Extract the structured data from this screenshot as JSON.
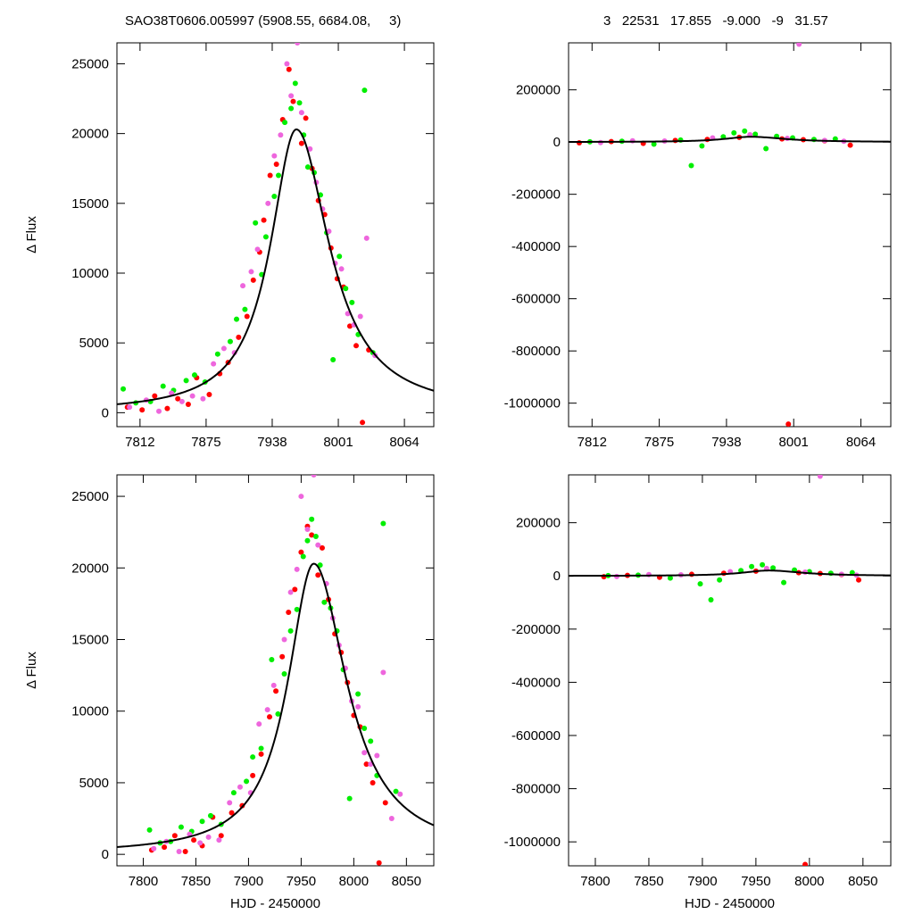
{
  "header": {
    "left": "SAO38T0606.005997 (5908.55, 6684.08,     3)",
    "right": "3   22531   17.855   -9.000   -9   31.57"
  },
  "colors": {
    "model": "#000000",
    "series_a": "#ff0000",
    "series_b": "#00ee00",
    "series_c": "#ee66dd"
  },
  "chart_data": [
    {
      "type": "scatter",
      "panel": "top-left",
      "xlabel": "",
      "ylabel": "Δ Flux",
      "xlim": [
        7790,
        8092
      ],
      "ylim": [
        -1000,
        26500
      ],
      "xticks": [
        7812,
        7875,
        7938,
        8001,
        8064
      ],
      "yticks": [
        0,
        5000,
        10000,
        15000,
        20000,
        25000
      ],
      "model": {
        "peak_x": 7961,
        "peak_y": 20300,
        "rise_scale": 30,
        "fall_scale": 38
      },
      "series": [
        {
          "color": "#ff0000",
          "x": [
            7800,
            7814,
            7826,
            7838,
            7848,
            7858,
            7866,
            7878,
            7888,
            7896,
            7906,
            7914,
            7920,
            7926,
            7930,
            7936,
            7942,
            7948,
            7954,
            7958,
            7966,
            7970,
            7976,
            7982,
            7988,
            7994,
            8000,
            8006,
            8012,
            8018,
            8024,
            8030
          ],
          "y": [
            400,
            200,
            1200,
            300,
            1000,
            600,
            2500,
            1300,
            2800,
            3600,
            5400,
            6900,
            9500,
            11500,
            13800,
            17000,
            17800,
            21000,
            24600,
            22300,
            19300,
            21100,
            17500,
            15200,
            14200,
            11800,
            9600,
            9000,
            6200,
            4800,
            -700,
            4500
          ]
        },
        {
          "color": "#00ee00",
          "x": [
            7796,
            7808,
            7822,
            7834,
            7844,
            7856,
            7864,
            7874,
            7886,
            7898,
            7904,
            7912,
            7922,
            7928,
            7932,
            7940,
            7944,
            7950,
            7956,
            7960,
            7964,
            7968,
            7972,
            7978,
            7984,
            7990,
            7996,
            8002,
            8008,
            8014,
            8020,
            8026,
            8034
          ],
          "y": [
            1700,
            700,
            800,
            1900,
            1600,
            2300,
            2700,
            2200,
            4200,
            5100,
            6700,
            7400,
            13600,
            9900,
            12600,
            15500,
            17000,
            20800,
            21800,
            23600,
            22200,
            19900,
            17600,
            17200,
            15600,
            12900,
            3800,
            11200,
            8900,
            7900,
            5600,
            23100,
            4300
          ]
        },
        {
          "color": "#ee66dd",
          "x": [
            7802,
            7818,
            7830,
            7842,
            7852,
            7862,
            7872,
            7882,
            7892,
            7902,
            7910,
            7918,
            7924,
            7934,
            7940,
            7946,
            7952,
            7956,
            7962,
            7966,
            7974,
            7980,
            7986,
            7992,
            7998,
            8004,
            8010,
            8016,
            8022,
            8028,
            8036
          ],
          "y": [
            400,
            900,
            100,
            1400,
            800,
            1200,
            1000,
            3500,
            4600,
            4300,
            9100,
            10100,
            11700,
            15000,
            18400,
            19900,
            25000,
            22700,
            26500,
            21500,
            18900,
            16500,
            14600,
            13000,
            10700,
            10300,
            7100,
            6300,
            6900,
            12500,
            4100
          ]
        }
      ]
    },
    {
      "type": "scatter",
      "panel": "top-right",
      "xlabel": "",
      "ylabel": "",
      "xlim": [
        7790,
        8092
      ],
      "ylim": [
        -1090000,
        380000
      ],
      "xticks": [
        7812,
        7875,
        7938,
        8001,
        8064
      ],
      "yticks": [
        -1000000,
        -800000,
        -600000,
        -400000,
        -200000,
        0,
        200000
      ],
      "model": {
        "peak_x": 7961,
        "peak_y": 20300,
        "rise_scale": 30,
        "fall_scale": 38
      },
      "series": [
        {
          "color": "#ff0000",
          "x": [
            7800,
            7830,
            7860,
            7890,
            7920,
            7950,
            7990,
            7996,
            8010,
            8030,
            8054
          ],
          "y": [
            -3000,
            2000,
            -5000,
            6000,
            10000,
            18000,
            12000,
            -1080000,
            9000,
            5000,
            -12000
          ]
        },
        {
          "color": "#00ee00",
          "x": [
            7810,
            7840,
            7870,
            7895,
            7905,
            7915,
            7935,
            7945,
            7955,
            7965,
            7975,
            7985,
            8000,
            8020,
            8040
          ],
          "y": [
            1000,
            3000,
            -8000,
            8000,
            -90000,
            -15000,
            20000,
            35000,
            42000,
            30000,
            -25000,
            22000,
            16000,
            10000,
            12000
          ]
        },
        {
          "color": "#ee66dd",
          "x": [
            7820,
            7850,
            7880,
            7925,
            7960,
            7995,
            8006,
            8030,
            8048
          ],
          "y": [
            -2000,
            5000,
            4000,
            16000,
            28000,
            14000,
            375000,
            6000,
            3000
          ]
        }
      ]
    },
    {
      "type": "scatter",
      "panel": "bottom-left",
      "xlabel": "HJD - 2450000",
      "ylabel": "Δ Flux",
      "xlim": [
        7775,
        8076
      ],
      "ylim": [
        -800,
        26500
      ],
      "xticks": [
        7800,
        7850,
        7900,
        7950,
        8000,
        8050
      ],
      "yticks": [
        0,
        5000,
        10000,
        15000,
        20000,
        25000
      ],
      "model": {
        "peak_x": 7962,
        "peak_y": 20300,
        "rise_scale": 30,
        "fall_scale": 38
      },
      "series": [
        {
          "color": "#ff0000",
          "x": [
            7808,
            7820,
            7830,
            7840,
            7848,
            7856,
            7866,
            7874,
            7884,
            7894,
            7904,
            7912,
            7920,
            7926,
            7932,
            7938,
            7944,
            7950,
            7956,
            7960,
            7966,
            7970,
            7976,
            7982,
            7988,
            7994,
            8000,
            8006,
            8012,
            8018,
            8024,
            8030
          ],
          "y": [
            300,
            500,
            1300,
            200,
            1000,
            600,
            2600,
            1300,
            2900,
            3400,
            5500,
            7000,
            9600,
            11400,
            13800,
            16900,
            18500,
            21100,
            22900,
            22300,
            19500,
            21400,
            17800,
            15400,
            14100,
            12000,
            9700,
            8900,
            6300,
            5000,
            -600,
            3600
          ]
        },
        {
          "color": "#00ee00",
          "x": [
            7806,
            7816,
            7826,
            7836,
            7846,
            7856,
            7864,
            7874,
            7886,
            7898,
            7904,
            7912,
            7922,
            7928,
            7934,
            7940,
            7946,
            7952,
            7956,
            7960,
            7964,
            7968,
            7972,
            7978,
            7984,
            7990,
            7996,
            8004,
            8010,
            8016,
            8022,
            8028,
            8040
          ],
          "y": [
            1700,
            800,
            900,
            1900,
            1600,
            2300,
            2700,
            2100,
            4300,
            5100,
            6800,
            7400,
            13600,
            9800,
            12600,
            15600,
            17100,
            20800,
            21900,
            23400,
            22200,
            20200,
            17600,
            17200,
            15600,
            12900,
            3900,
            11200,
            8800,
            7900,
            5500,
            23100,
            4400
          ]
        },
        {
          "color": "#ee66dd",
          "x": [
            7810,
            7822,
            7834,
            7844,
            7854,
            7862,
            7872,
            7882,
            7892,
            7902,
            7910,
            7918,
            7924,
            7934,
            7940,
            7946,
            7950,
            7956,
            7962,
            7966,
            7974,
            7980,
            7986,
            7992,
            7998,
            8004,
            8010,
            8016,
            8022,
            8028,
            8036,
            8044
          ],
          "y": [
            400,
            900,
            200,
            1400,
            800,
            1200,
            1000,
            3600,
            4700,
            4300,
            9100,
            10100,
            11800,
            15000,
            18300,
            19900,
            25000,
            22700,
            26500,
            21600,
            18900,
            16500,
            14600,
            13000,
            10700,
            10300,
            7100,
            6300,
            6900,
            12700,
            2500,
            4200
          ]
        }
      ]
    },
    {
      "type": "scatter",
      "panel": "bottom-right",
      "xlabel": "HJD - 2450000",
      "ylabel": "",
      "xlim": [
        7775,
        8076
      ],
      "ylim": [
        -1090000,
        380000
      ],
      "xticks": [
        7800,
        7850,
        7900,
        7950,
        8000,
        8050
      ],
      "yticks": [
        -1000000,
        -800000,
        -600000,
        -400000,
        -200000,
        0,
        200000
      ],
      "model": {
        "peak_x": 7962,
        "peak_y": 20300,
        "rise_scale": 30,
        "fall_scale": 38
      },
      "series": [
        {
          "color": "#ff0000",
          "x": [
            7808,
            7830,
            7860,
            7890,
            7920,
            7950,
            7990,
            7996,
            8010,
            8030,
            8046
          ],
          "y": [
            -3000,
            2000,
            -5000,
            6000,
            10000,
            18000,
            12000,
            -1085000,
            9000,
            5000,
            -15000
          ]
        },
        {
          "color": "#00ee00",
          "x": [
            7812,
            7840,
            7870,
            7898,
            7908,
            7916,
            7936,
            7946,
            7956,
            7966,
            7976,
            7986,
            8000,
            8020,
            8040
          ],
          "y": [
            1000,
            3000,
            -8000,
            -30000,
            -90000,
            -15000,
            20000,
            35000,
            42000,
            30000,
            -25000,
            22000,
            16000,
            10000,
            12000
          ]
        },
        {
          "color": "#ee66dd",
          "x": [
            7820,
            7850,
            7880,
            7926,
            7960,
            7996,
            8010,
            8030,
            8044
          ],
          "y": [
            -2000,
            5000,
            4000,
            16000,
            28000,
            14000,
            375000,
            6000,
            3000
          ]
        }
      ]
    }
  ]
}
